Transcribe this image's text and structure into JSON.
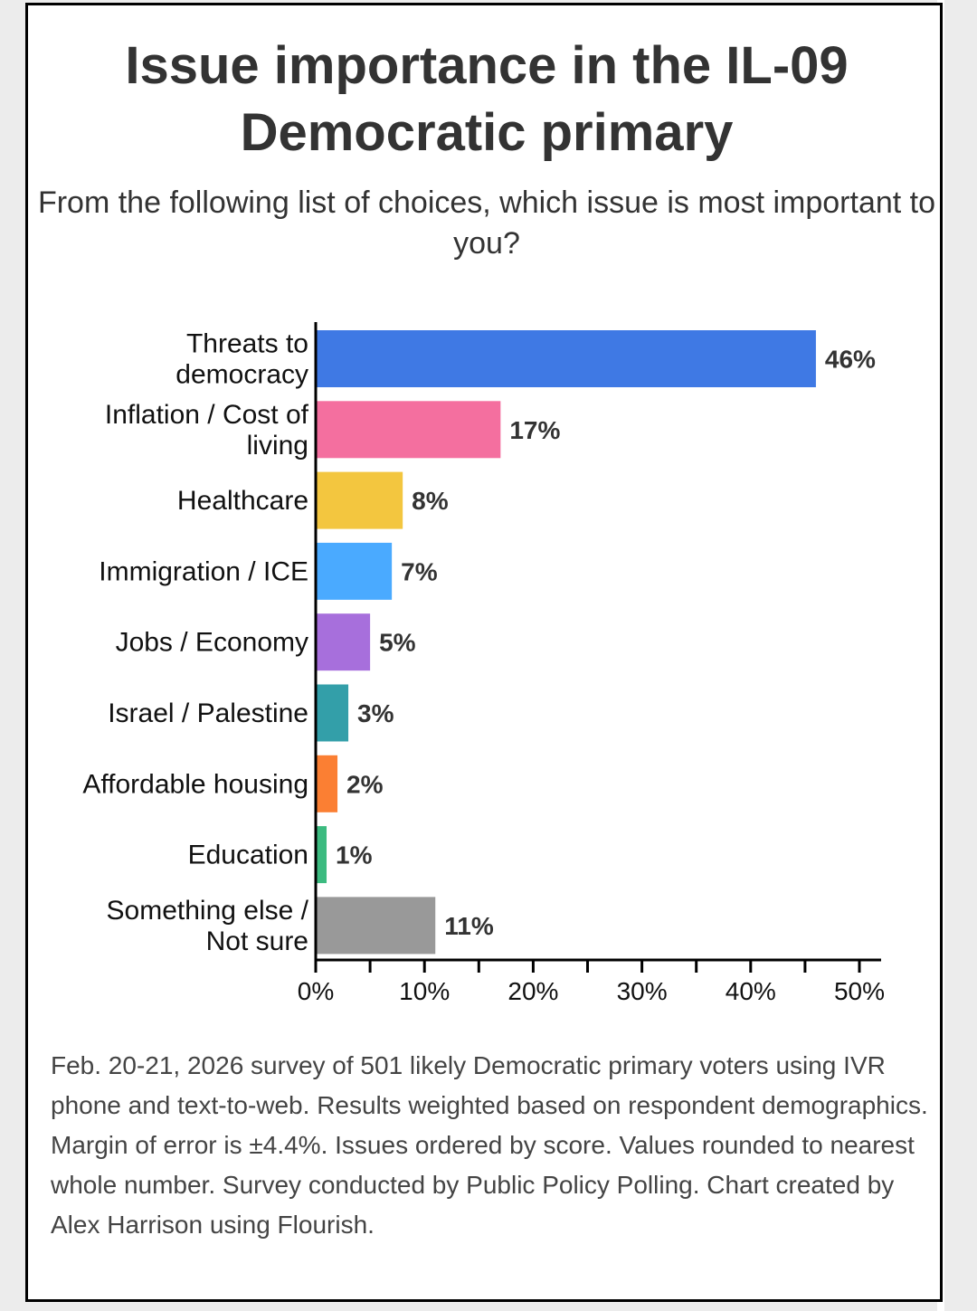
{
  "chart_data": {
    "type": "bar",
    "orientation": "horizontal",
    "title": "Issue importance in the IL-09 Democratic primary",
    "subtitle": "From the following list of choices, which issue is most important to you?",
    "categories": [
      [
        "Threats to",
        "democracy"
      ],
      [
        "Inflation / Cost of",
        "living"
      ],
      [
        "Healthcare"
      ],
      [
        "Immigration / ICE"
      ],
      [
        "Jobs / Economy"
      ],
      [
        "Israel / Palestine"
      ],
      [
        "Affordable housing"
      ],
      [
        "Education"
      ],
      [
        "Something else /",
        "Not sure"
      ]
    ],
    "values": [
      46,
      17,
      8,
      7,
      5,
      3,
      2,
      1,
      11
    ],
    "value_labels": [
      "46%",
      "17%",
      "8%",
      "7%",
      "5%",
      "3%",
      "2%",
      "1%",
      "11%"
    ],
    "colors": [
      "#3f79e4",
      "#f46f9f",
      "#f3c63f",
      "#4aaaff",
      "#a76fdc",
      "#339fa9",
      "#fb7f33",
      "#3cbb80",
      "#999999"
    ],
    "xlim": [
      0,
      52
    ],
    "x_ticks": [
      0,
      10,
      20,
      30,
      40,
      50
    ],
    "x_tick_labels": [
      "0%",
      "10%",
      "20%",
      "30%",
      "40%",
      "50%"
    ],
    "x_minor_ticks": [
      5,
      15,
      25,
      35,
      45
    ],
    "xlabel": "",
    "ylabel": "",
    "grid": false,
    "legend": "none"
  },
  "footnote": "Feb. 20-21, 2026 survey of 501 likely Democratic primary voters using IVR phone and text-to-web. Results weighted based on respondent demographics. Margin of error is ±4.4%. Issues ordered by score. Values rounded to nearest whole number. Survey conducted by Public Policy Polling. Chart created by Alex Harrison using Flourish."
}
